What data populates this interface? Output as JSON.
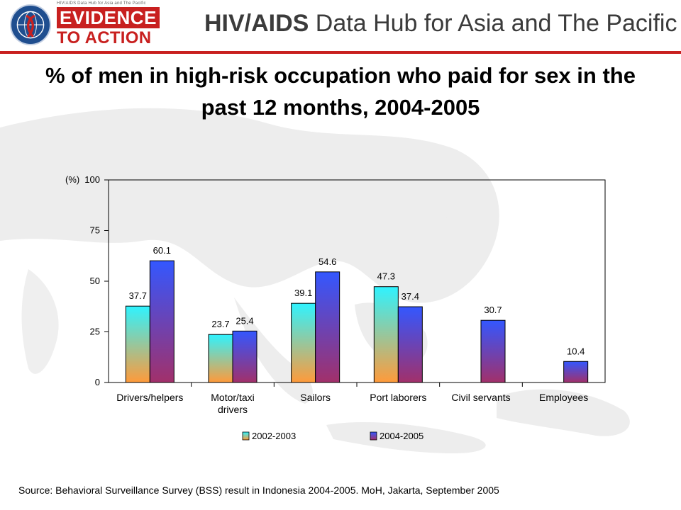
{
  "header": {
    "logo_small_text": "HIV/AIDS Data Hub for Asia and The Pacific",
    "logo_line1": "EVIDENCE",
    "logo_line2": "TO ACTION",
    "hub_title_bold": "HIV/AIDS",
    "hub_title_rest": " Data Hub for Asia and The Pacific"
  },
  "colors": {
    "brand_red": "#c8201f",
    "series1_top": "#2ff3ff",
    "series1_bottom": "#ff9a3a",
    "series2_top": "#3357ff",
    "series2_bottom": "#a2306a"
  },
  "chart_data": {
    "type": "bar",
    "title": "% of men in high-risk occupation who paid for sex in the past 12 months, 2004-2005",
    "ylabel": "(%)",
    "ylim": [
      0,
      100
    ],
    "yticks": [
      0,
      25,
      50,
      75,
      100
    ],
    "categories": [
      "Drivers/helpers",
      "Motor/taxi drivers",
      "Sailors",
      "Port laborers",
      "Civil servants",
      "Employees"
    ],
    "series": [
      {
        "name": "2002-2003",
        "values": [
          37.7,
          23.7,
          39.1,
          47.3,
          null,
          null
        ]
      },
      {
        "name": "2004-2005",
        "values": [
          60.1,
          25.4,
          54.6,
          37.4,
          30.7,
          10.4
        ]
      }
    ],
    "legend_position": "bottom",
    "grid": false
  },
  "footer": {
    "source": "Source: Behavioral Surveillance Survey (BSS) result in Indonesia 2004-2005. MoH, Jakarta, September 2005"
  }
}
